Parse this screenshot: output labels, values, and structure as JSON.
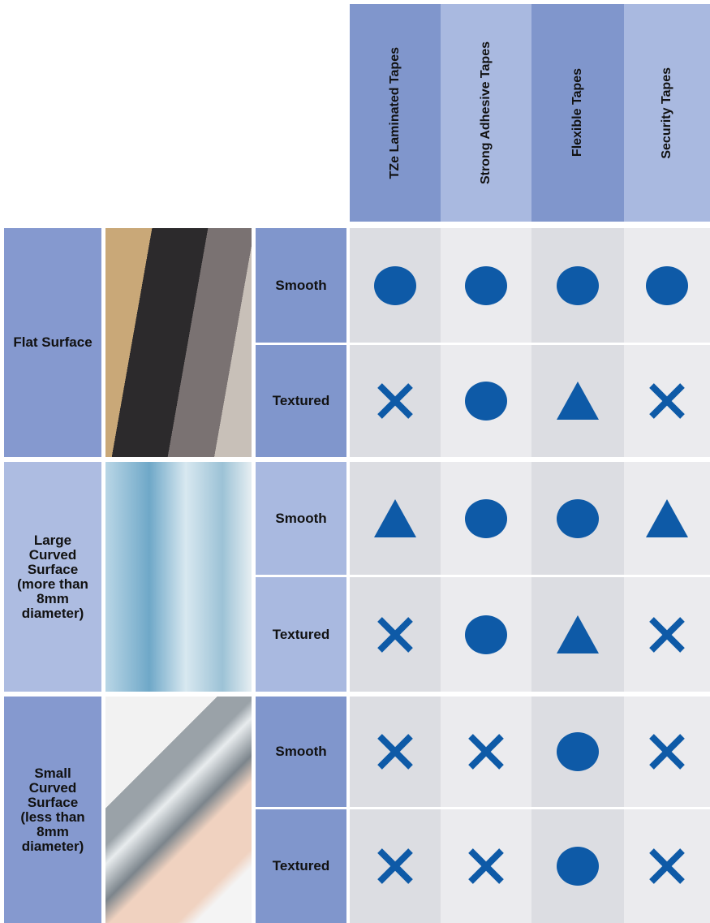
{
  "header": {
    "columns": [
      "TZe Laminated Tapes",
      "Strong Adhesive Tapes",
      "Flexible Tapes",
      "Security Tapes"
    ]
  },
  "groups": [
    {
      "label": "Flat Surface",
      "rows": [
        {
          "texture": "Smooth",
          "symbols": [
            "circle",
            "circle",
            "circle",
            "circle"
          ]
        },
        {
          "texture": "Textured",
          "symbols": [
            "cross",
            "circle",
            "triangle",
            "cross"
          ]
        }
      ]
    },
    {
      "label": "Large Curved Surface (more than 8mm diameter)",
      "rows": [
        {
          "texture": "Smooth",
          "symbols": [
            "triangle",
            "circle",
            "circle",
            "triangle"
          ]
        },
        {
          "texture": "Textured",
          "symbols": [
            "cross",
            "circle",
            "triangle",
            "cross"
          ]
        }
      ]
    },
    {
      "label": "Small Curved Surface (less than 8mm diameter)",
      "rows": [
        {
          "texture": "Smooth",
          "symbols": [
            "cross",
            "cross",
            "circle",
            "cross"
          ]
        },
        {
          "texture": "Textured",
          "symbols": [
            "cross",
            "cross",
            "circle",
            "cross"
          ]
        }
      ]
    }
  ]
}
